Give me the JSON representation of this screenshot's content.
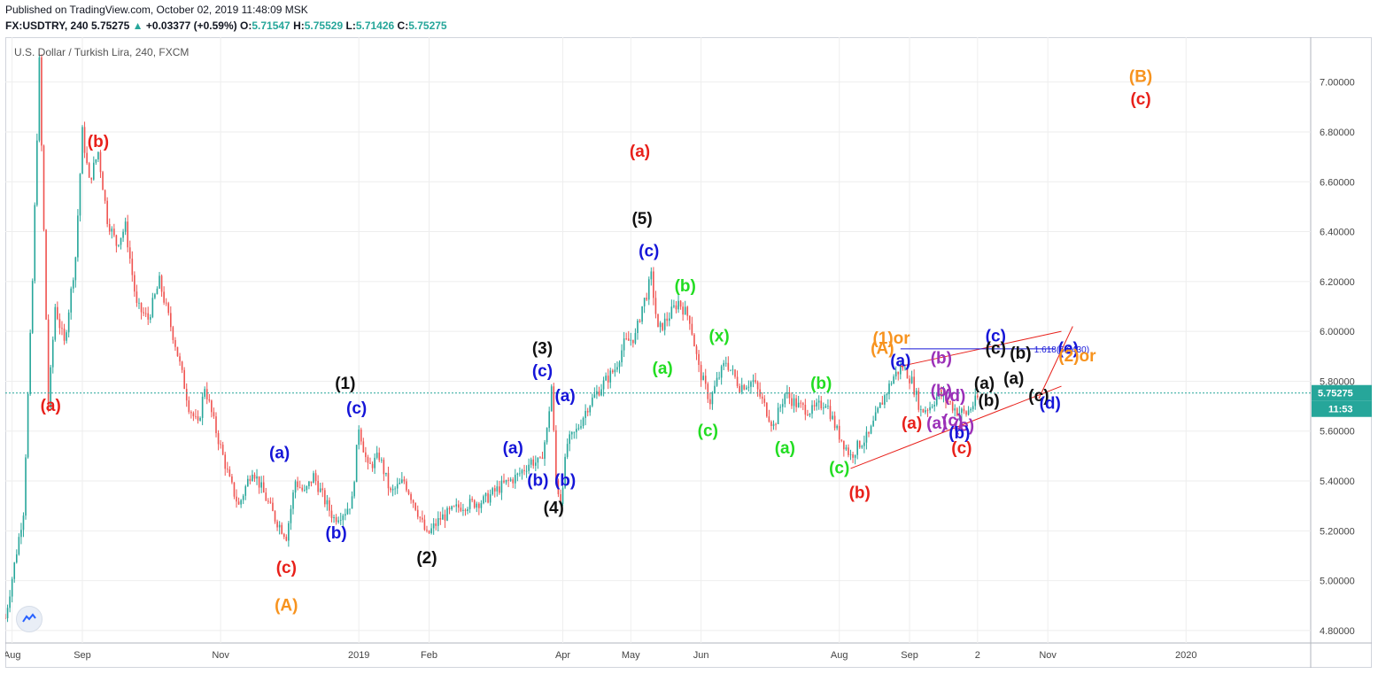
{
  "header": {
    "published": "Published on TradingView.com, October 02, 2019 11:48:09 MSK",
    "symbol": "FX:USDTRY, 240",
    "last": "5.75275",
    "change_arrow": "▲",
    "change": "+0.03377 (+0.59%)",
    "o_label": "O:",
    "o_value": "5.71547",
    "h_label": "H:",
    "h_value": "5.75529",
    "l_label": "L:",
    "l_value": "5.71426",
    "c_label": "C:",
    "c_value": "5.75275"
  },
  "colors": {
    "up": "#26a69a",
    "down": "#ef5350",
    "red": "#e8201a",
    "blue": "#1515d8",
    "green": "#22dd22",
    "orange": "#f7931e",
    "purple": "#9b30b8",
    "black": "#111111",
    "last_price_badge": "#26a69a",
    "axis_text": "#444444",
    "grid": "#eeeeee"
  },
  "icons": {
    "logo": "tradingview-cloud-icon"
  },
  "chart_data": {
    "type": "candlestick",
    "title": "U.S. Dollar / Turkish Lira, 240, FXCM",
    "xlabel": "",
    "ylabel": "",
    "ylim": [
      4.75,
      7.18
    ],
    "grid": true,
    "y_ticks": [
      "4.80000",
      "5.00000",
      "5.20000",
      "5.40000",
      "5.60000",
      "5.80000",
      "6.00000",
      "6.20000",
      "6.40000",
      "6.60000",
      "6.80000",
      "7.00000"
    ],
    "x_ticks": [
      {
        "label": "Aug",
        "date": "2018-08-01"
      },
      {
        "label": "Sep",
        "date": "2018-09-01"
      },
      {
        "label": "Nov",
        "date": "2018-11-01"
      },
      {
        "label": "2019",
        "date": "2019-01-01"
      },
      {
        "label": "Feb",
        "date": "2019-02-01"
      },
      {
        "label": "Apr",
        "date": "2019-04-01"
      },
      {
        "label": "May",
        "date": "2019-05-01"
      },
      {
        "label": "Jun",
        "date": "2019-06-01"
      },
      {
        "label": "Aug",
        "date": "2019-08-01"
      },
      {
        "label": "Sep",
        "date": "2019-09-01"
      },
      {
        "label": "2",
        "date": "2019-10-01"
      },
      {
        "label": "Nov",
        "date": "2019-11-01"
      },
      {
        "label": "2020",
        "date": "2020-01-01"
      }
    ],
    "last_price": {
      "label": "5.75275",
      "value": 5.75275,
      "countdown": "11:53"
    },
    "price_path": [
      [
        "2018-07-29",
        4.85
      ],
      [
        "2018-08-06",
        5.28
      ],
      [
        "2018-08-10",
        6.2
      ],
      [
        "2018-08-13",
        7.08
      ],
      [
        "2018-08-15",
        6.4
      ],
      [
        "2018-08-17",
        5.7
      ],
      [
        "2018-08-20",
        6.1
      ],
      [
        "2018-08-24",
        5.95
      ],
      [
        "2018-08-29",
        6.3
      ],
      [
        "2018-09-01",
        6.8
      ],
      [
        "2018-09-04",
        6.6
      ],
      [
        "2018-09-08",
        6.72
      ],
      [
        "2018-09-12",
        6.45
      ],
      [
        "2018-09-16",
        6.35
      ],
      [
        "2018-09-20",
        6.42
      ],
      [
        "2018-09-25",
        6.1
      ],
      [
        "2018-09-30",
        6.05
      ],
      [
        "2018-10-05",
        6.2
      ],
      [
        "2018-10-12",
        5.95
      ],
      [
        "2018-10-18",
        5.7
      ],
      [
        "2018-10-22",
        5.62
      ],
      [
        "2018-10-25",
        5.78
      ],
      [
        "2018-10-30",
        5.6
      ],
      [
        "2018-11-05",
        5.4
      ],
      [
        "2018-11-09",
        5.3
      ],
      [
        "2018-11-15",
        5.45
      ],
      [
        "2018-11-20",
        5.35
      ],
      [
        "2018-11-25",
        5.25
      ],
      [
        "2018-11-30",
        5.18
      ],
      [
        "2018-12-04",
        5.4
      ],
      [
        "2018-12-08",
        5.35
      ],
      [
        "2018-12-12",
        5.42
      ],
      [
        "2018-12-17",
        5.32
      ],
      [
        "2018-12-21",
        5.25
      ],
      [
        "2018-12-26",
        5.28
      ],
      [
        "2018-12-29",
        5.32
      ],
      [
        "2019-01-01",
        5.62
      ],
      [
        "2019-01-05",
        5.45
      ],
      [
        "2019-01-10",
        5.5
      ],
      [
        "2019-01-15",
        5.35
      ],
      [
        "2019-01-21",
        5.4
      ],
      [
        "2019-01-26",
        5.3
      ],
      [
        "2019-01-31",
        5.18
      ],
      [
        "2019-02-06",
        5.25
      ],
      [
        "2019-02-15",
        5.3
      ],
      [
        "2019-02-25",
        5.32
      ],
      [
        "2019-03-05",
        5.38
      ],
      [
        "2019-03-12",
        5.42
      ],
      [
        "2019-03-18",
        5.48
      ],
      [
        "2019-03-22",
        5.47
      ],
      [
        "2019-03-25",
        5.6
      ],
      [
        "2019-03-27",
        5.78
      ],
      [
        "2019-03-29",
        5.4
      ],
      [
        "2019-03-31",
        5.32
      ],
      [
        "2019-04-03",
        5.55
      ],
      [
        "2019-04-07",
        5.6
      ],
      [
        "2019-04-12",
        5.7
      ],
      [
        "2019-04-18",
        5.78
      ],
      [
        "2019-04-24",
        5.85
      ],
      [
        "2019-04-28",
        5.95
      ],
      [
        "2019-05-03",
        5.98
      ],
      [
        "2019-05-06",
        6.1
      ],
      [
        "2019-05-08",
        6.15
      ],
      [
        "2019-05-10",
        6.22
      ],
      [
        "2019-05-13",
        6.0
      ],
      [
        "2019-05-17",
        6.05
      ],
      [
        "2019-05-22",
        6.12
      ],
      [
        "2019-05-27",
        6.05
      ],
      [
        "2019-05-31",
        5.85
      ],
      [
        "2019-06-05",
        5.72
      ],
      [
        "2019-06-08",
        5.8
      ],
      [
        "2019-06-12",
        5.88
      ],
      [
        "2019-06-18",
        5.78
      ],
      [
        "2019-06-24",
        5.8
      ],
      [
        "2019-06-29",
        5.7
      ],
      [
        "2019-07-03",
        5.62
      ],
      [
        "2019-07-08",
        5.75
      ],
      [
        "2019-07-14",
        5.7
      ],
      [
        "2019-07-20",
        5.68
      ],
      [
        "2019-07-26",
        5.72
      ],
      [
        "2019-07-31",
        5.6
      ],
      [
        "2019-08-06",
        5.5
      ],
      [
        "2019-08-10",
        5.55
      ],
      [
        "2019-08-14",
        5.58
      ],
      [
        "2019-08-19",
        5.7
      ],
      [
        "2019-08-25",
        5.82
      ],
      [
        "2019-08-29",
        5.86
      ],
      [
        "2019-09-02",
        5.8
      ],
      [
        "2019-09-06",
        5.68
      ],
      [
        "2019-09-10",
        5.7
      ],
      [
        "2019-09-14",
        5.75
      ],
      [
        "2019-09-18",
        5.72
      ],
      [
        "2019-09-22",
        5.68
      ],
      [
        "2019-09-26",
        5.67
      ],
      [
        "2019-10-01",
        5.73
      ],
      [
        "2019-10-02",
        5.75275
      ]
    ],
    "wave_labels": [
      {
        "text": "(a)",
        "date": "2018-08-18",
        "price": 5.68,
        "color": "red"
      },
      {
        "text": "(b)",
        "date": "2018-09-08",
        "price": 6.74,
        "color": "red"
      },
      {
        "text": "(c)",
        "date": "2018-11-30",
        "price": 5.03,
        "color": "red"
      },
      {
        "text": "(A)",
        "date": "2018-11-30",
        "price": 4.88,
        "color": "orange"
      },
      {
        "text": "(a)",
        "date": "2018-11-27",
        "price": 5.49,
        "color": "blue"
      },
      {
        "text": "(b)",
        "date": "2018-12-22",
        "price": 5.17,
        "color": "blue"
      },
      {
        "text": "(c)",
        "date": "2018-12-31",
        "price": 5.67,
        "color": "blue"
      },
      {
        "text": "(1)",
        "date": "2018-12-26",
        "price": 5.77,
        "color": "black"
      },
      {
        "text": "(2)",
        "date": "2019-01-31",
        "price": 5.07,
        "color": "black"
      },
      {
        "text": "(a)",
        "date": "2019-03-10",
        "price": 5.51,
        "color": "blue"
      },
      {
        "text": "(b)",
        "date": "2019-03-21",
        "price": 5.38,
        "color": "blue"
      },
      {
        "text": "(c)",
        "date": "2019-03-23",
        "price": 5.82,
        "color": "blue"
      },
      {
        "text": "(3)",
        "date": "2019-03-23",
        "price": 5.91,
        "color": "black"
      },
      {
        "text": "(a)",
        "date": "2019-04-02",
        "price": 5.72,
        "color": "blue"
      },
      {
        "text": "(b)",
        "date": "2019-04-02",
        "price": 5.38,
        "color": "blue"
      },
      {
        "text": "(4)",
        "date": "2019-03-28",
        "price": 5.27,
        "color": "black"
      },
      {
        "text": "(c)",
        "date": "2019-05-09",
        "price": 6.3,
        "color": "blue"
      },
      {
        "text": "(5)",
        "date": "2019-05-06",
        "price": 6.43,
        "color": "black"
      },
      {
        "text": "(a)",
        "date": "2019-05-05",
        "price": 6.7,
        "color": "red"
      },
      {
        "text": "(b)",
        "date": "2019-05-25",
        "price": 6.16,
        "color": "green"
      },
      {
        "text": "(a)",
        "date": "2019-05-15",
        "price": 5.83,
        "color": "green"
      },
      {
        "text": "(x)",
        "date": "2019-06-09",
        "price": 5.96,
        "color": "green"
      },
      {
        "text": "(c)",
        "date": "2019-06-04",
        "price": 5.58,
        "color": "green"
      },
      {
        "text": "(a)",
        "date": "2019-07-08",
        "price": 5.51,
        "color": "green"
      },
      {
        "text": "(b)",
        "date": "2019-07-24",
        "price": 5.77,
        "color": "green"
      },
      {
        "text": "(c)",
        "date": "2019-08-01",
        "price": 5.43,
        "color": "green"
      },
      {
        "text": "(b)",
        "date": "2019-08-10",
        "price": 5.33,
        "color": "red"
      },
      {
        "text": "(1)or",
        "date": "2019-08-24",
        "price": 5.95,
        "color": "orange"
      },
      {
        "text": "(A)",
        "date": "2019-08-20",
        "price": 5.91,
        "color": "orange"
      },
      {
        "text": "(a)",
        "date": "2019-08-28",
        "price": 5.86,
        "color": "blue"
      },
      {
        "text": "(a)",
        "date": "2019-09-02",
        "price": 5.61,
        "color": "red"
      },
      {
        "text": "(b)",
        "date": "2019-09-15",
        "price": 5.87,
        "color": "purple"
      },
      {
        "text": "(b)",
        "date": "2019-09-15",
        "price": 5.74,
        "color": "purple"
      },
      {
        "text": "(d)",
        "date": "2019-09-21",
        "price": 5.72,
        "color": "purple"
      },
      {
        "text": "(a)",
        "date": "2019-09-13",
        "price": 5.61,
        "color": "purple"
      },
      {
        "text": "(c)",
        "date": "2019-09-20",
        "price": 5.62,
        "color": "purple"
      },
      {
        "text": "(e)",
        "date": "2019-09-25",
        "price": 5.6,
        "color": "purple"
      },
      {
        "text": "(b)",
        "date": "2019-09-23",
        "price": 5.57,
        "color": "blue"
      },
      {
        "text": "(c)",
        "date": "2019-09-24",
        "price": 5.51,
        "color": "red"
      },
      {
        "text": "(c)",
        "date": "2019-10-09",
        "price": 5.96,
        "color": "blue"
      },
      {
        "text": "(c)",
        "date": "2019-10-09",
        "price": 5.91,
        "color": "black"
      },
      {
        "text": "(a)",
        "date": "2019-10-04",
        "price": 5.77,
        "color": "black"
      },
      {
        "text": "(b)",
        "date": "2019-10-06",
        "price": 5.7,
        "color": "black"
      },
      {
        "text": "(b)",
        "date": "2019-10-20",
        "price": 5.89,
        "color": "black"
      },
      {
        "text": "(a)",
        "date": "2019-10-17",
        "price": 5.79,
        "color": "black"
      },
      {
        "text": "(c)",
        "date": "2019-10-28",
        "price": 5.72,
        "color": "black"
      },
      {
        "text": "(d)",
        "date": "2019-11-02",
        "price": 5.69,
        "color": "blue"
      },
      {
        "text": "(e)",
        "date": "2019-11-10",
        "price": 5.91,
        "color": "blue"
      },
      {
        "text": "(2)or",
        "date": "2019-11-14",
        "price": 5.88,
        "color": "orange"
      },
      {
        "text": "(B)",
        "date": "2019-12-12",
        "price": 7.0,
        "color": "orange"
      },
      {
        "text": "(c)",
        "date": "2019-12-12",
        "price": 6.91,
        "color": "red"
      }
    ],
    "trendlines": [
      {
        "from": [
          "2019-08-06",
          5.45
        ],
        "to": [
          "2019-11-07",
          5.78
        ],
        "color": "red"
      },
      {
        "from": [
          "2019-08-28",
          5.86
        ],
        "to": [
          "2019-11-07",
          6.0
        ],
        "color": "red"
      },
      {
        "from": [
          "2019-10-28",
          5.73
        ],
        "to": [
          "2019-11-12",
          6.02
        ],
        "color": "red"
      }
    ],
    "annotations": [
      {
        "text": "1.618(5.9430)",
        "date": "2019-10-26",
        "price": 5.93,
        "color": "blue"
      }
    ]
  }
}
